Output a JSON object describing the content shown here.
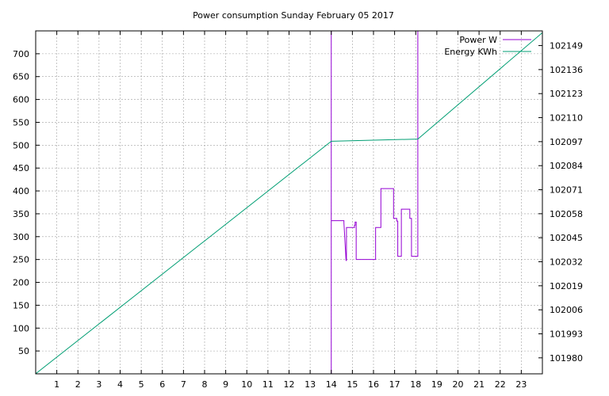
{
  "chart_data": {
    "type": "line",
    "title": "Power consumption Sunday February 05 2017",
    "x_ticks": [
      1,
      2,
      3,
      4,
      5,
      6,
      7,
      8,
      9,
      10,
      11,
      12,
      13,
      14,
      15,
      16,
      17,
      18,
      19,
      20,
      21,
      22,
      23
    ],
    "xlim": [
      0,
      24
    ],
    "y_ticks": [
      50,
      100,
      150,
      200,
      250,
      300,
      350,
      400,
      450,
      500,
      550,
      600,
      650,
      700
    ],
    "ylim": [
      0,
      750
    ],
    "y2_ticks": [
      101980,
      101993,
      102006,
      102019,
      102032,
      102045,
      102058,
      102071,
      102084,
      102097,
      102110,
      102123,
      102136,
      102149
    ],
    "y2lim": [
      101971.35,
      102156.95
    ],
    "grid": true,
    "legend_position": "top-right",
    "series": [
      {
        "name": "Power W",
        "color": "#9400d3",
        "axis": "left",
        "x": [
          14.0,
          14.0,
          14.0,
          14.6,
          14.6,
          14.7,
          14.72,
          14.72,
          15.1,
          15.1,
          15.13,
          15.13,
          15.18,
          15.18,
          16.1,
          16.1,
          16.35,
          16.35,
          16.95,
          16.95,
          17.1,
          17.1,
          17.15,
          17.15,
          17.32,
          17.32,
          17.72,
          17.72,
          17.8,
          17.8,
          17.85,
          17.85,
          18.1,
          18.1
        ],
        "y": [
          0,
          750,
          335,
          335,
          330,
          248,
          248,
          320,
          320,
          325,
          325,
          332,
          332,
          250,
          250,
          320,
          320,
          405,
          405,
          340,
          340,
          334,
          334,
          257,
          257,
          360,
          360,
          340,
          340,
          257,
          257,
          257,
          257,
          750
        ]
      },
      {
        "name": "Energy KWh",
        "color": "#009e73",
        "axis": "right",
        "x": [
          0,
          14.0,
          18.1,
          24
        ],
        "y": [
          101971.4,
          102097.2,
          102098.4,
          102156.0
        ]
      }
    ]
  }
}
